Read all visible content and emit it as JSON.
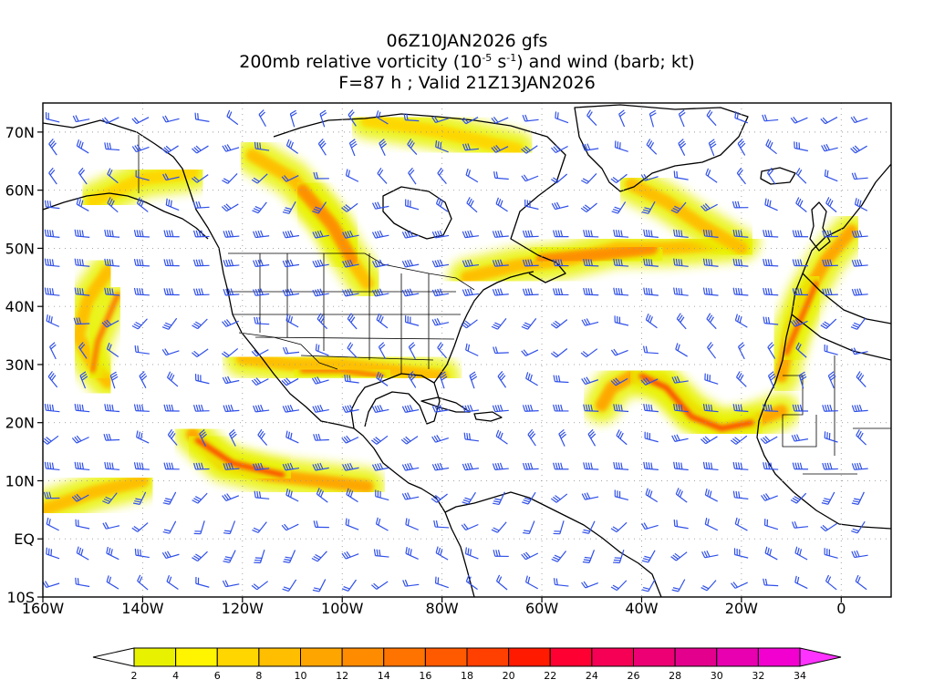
{
  "title": {
    "line1": "06Z10JAN2026 gfs",
    "line2_a": "200mb relative vorticity (10",
    "line2_sup1": "-5",
    "line2_b": " s",
    "line2_sup2": "-1",
    "line2_c": ") and wind (barb; kt)",
    "line3": "F=87 h ; Valid 21Z13JAN2026"
  },
  "map": {
    "lon_range": [
      -160,
      10
    ],
    "lat_range": [
      -10,
      75
    ],
    "lat_ticks": [
      {
        "lat": 70,
        "label": "70N"
      },
      {
        "lat": 60,
        "label": "60N"
      },
      {
        "lat": 50,
        "label": "50N"
      },
      {
        "lat": 40,
        "label": "40N"
      },
      {
        "lat": 30,
        "label": "30N"
      },
      {
        "lat": 20,
        "label": "20N"
      },
      {
        "lat": 10,
        "label": "10N"
      },
      {
        "lat": 0,
        "label": "EQ"
      },
      {
        "lat": -10,
        "label": "10S"
      }
    ],
    "lon_ticks": [
      {
        "lon": -160,
        "label": "160W"
      },
      {
        "lon": -140,
        "label": "140W"
      },
      {
        "lon": -120,
        "label": "120W"
      },
      {
        "lon": -100,
        "label": "100W"
      },
      {
        "lon": -80,
        "label": "80W"
      },
      {
        "lon": -60,
        "label": "60W"
      },
      {
        "lon": -40,
        "label": "40W"
      },
      {
        "lon": -20,
        "label": "20W"
      },
      {
        "lon": 0,
        "label": "0"
      }
    ],
    "grid": true,
    "colors": {
      "frame": "#000000",
      "grid": "#9a9a9a",
      "coast": "#000000",
      "barbs": "#3050e8"
    }
  },
  "colorbar": {
    "levels": [
      "2",
      "4",
      "6",
      "8",
      "10",
      "12",
      "14",
      "16",
      "18",
      "20",
      "22",
      "24",
      "26",
      "28",
      "30",
      "32",
      "34"
    ],
    "colors": [
      "#e8f200",
      "#fff500",
      "#ffd600",
      "#ffbe00",
      "#ffa500",
      "#ff8c00",
      "#ff7300",
      "#ff5a00",
      "#ff4000",
      "#ff1a00",
      "#ff0033",
      "#f50055",
      "#ec0073",
      "#e3008c",
      "#e800b0",
      "#f200d0"
    ],
    "under_color": "#ffffff",
    "over_color": "#ff33ff"
  },
  "vorticity_bands": [
    {
      "points": [
        [
          -147,
          46
        ],
        [
          -151,
          41
        ],
        [
          -153,
          35
        ],
        [
          -150,
          30
        ],
        [
          -147,
          27
        ]
      ],
      "level": 8
    },
    {
      "points": [
        [
          -145,
          42
        ],
        [
          -149,
          34
        ],
        [
          -150,
          29
        ]
      ],
      "level": 14
    },
    {
      "points": [
        [
          -130,
          18
        ],
        [
          -124,
          13
        ],
        [
          -115,
          11
        ],
        [
          -105,
          10
        ],
        [
          -95,
          9
        ]
      ],
      "level": 10
    },
    {
      "points": [
        [
          -129,
          17
        ],
        [
          -122,
          13
        ],
        [
          -112,
          11
        ]
      ],
      "level": 18
    },
    {
      "points": [
        [
          -160,
          5
        ],
        [
          -150,
          8
        ],
        [
          -140,
          10
        ]
      ],
      "level": 8
    },
    {
      "points": [
        [
          -120,
          31
        ],
        [
          -110,
          30
        ],
        [
          -100,
          30
        ],
        [
          -90,
          29
        ],
        [
          -80,
          28
        ]
      ],
      "level": 8
    },
    {
      "points": [
        [
          -108,
          29
        ],
        [
          -100,
          29
        ],
        [
          -92,
          28
        ]
      ],
      "level": 14
    },
    {
      "points": [
        [
          -118,
          66
        ],
        [
          -110,
          62
        ],
        [
          -103,
          55
        ],
        [
          -99,
          49
        ],
        [
          -95,
          44
        ]
      ],
      "level": 8
    },
    {
      "points": [
        [
          -108,
          60
        ],
        [
          -102,
          54
        ],
        [
          -98,
          48
        ]
      ],
      "level": 12
    },
    {
      "points": [
        [
          -75,
          45
        ],
        [
          -65,
          47
        ],
        [
          -55,
          48
        ],
        [
          -45,
          50
        ],
        [
          -35,
          50
        ],
        [
          -20,
          51
        ]
      ],
      "level": 8
    },
    {
      "points": [
        [
          -60,
          48
        ],
        [
          -48,
          49
        ],
        [
          -38,
          50
        ]
      ],
      "level": 12
    },
    {
      "points": [
        [
          -42,
          61
        ],
        [
          -35,
          58
        ],
        [
          -28,
          54
        ],
        [
          -20,
          50
        ]
      ],
      "level": 8
    },
    {
      "points": [
        [
          -48,
          23
        ],
        [
          -46,
          26
        ],
        [
          -42,
          28
        ],
        [
          -36,
          27
        ],
        [
          -30,
          22
        ],
        [
          -24,
          19
        ],
        [
          -18,
          20
        ],
        [
          -12,
          22
        ]
      ],
      "level": 10
    },
    {
      "points": [
        [
          -40,
          28
        ],
        [
          -35,
          26
        ],
        [
          -30,
          21
        ],
        [
          -24,
          19
        ],
        [
          -18,
          20
        ]
      ],
      "level": 18
    },
    {
      "points": [
        [
          -12,
          28
        ],
        [
          -10,
          36
        ],
        [
          -7,
          42
        ],
        [
          -3,
          48
        ],
        [
          2,
          53
        ]
      ],
      "level": 10
    },
    {
      "points": [
        [
          -11,
          32
        ],
        [
          -8,
          38
        ],
        [
          -5,
          44
        ]
      ],
      "level": 16
    },
    {
      "points": [
        [
          -150,
          58
        ],
        [
          -140,
          62
        ],
        [
          -130,
          63
        ]
      ],
      "level": 6
    },
    {
      "points": [
        [
          -95,
          72
        ],
        [
          -80,
          70
        ],
        [
          -65,
          67
        ]
      ],
      "level": 6
    }
  ]
}
